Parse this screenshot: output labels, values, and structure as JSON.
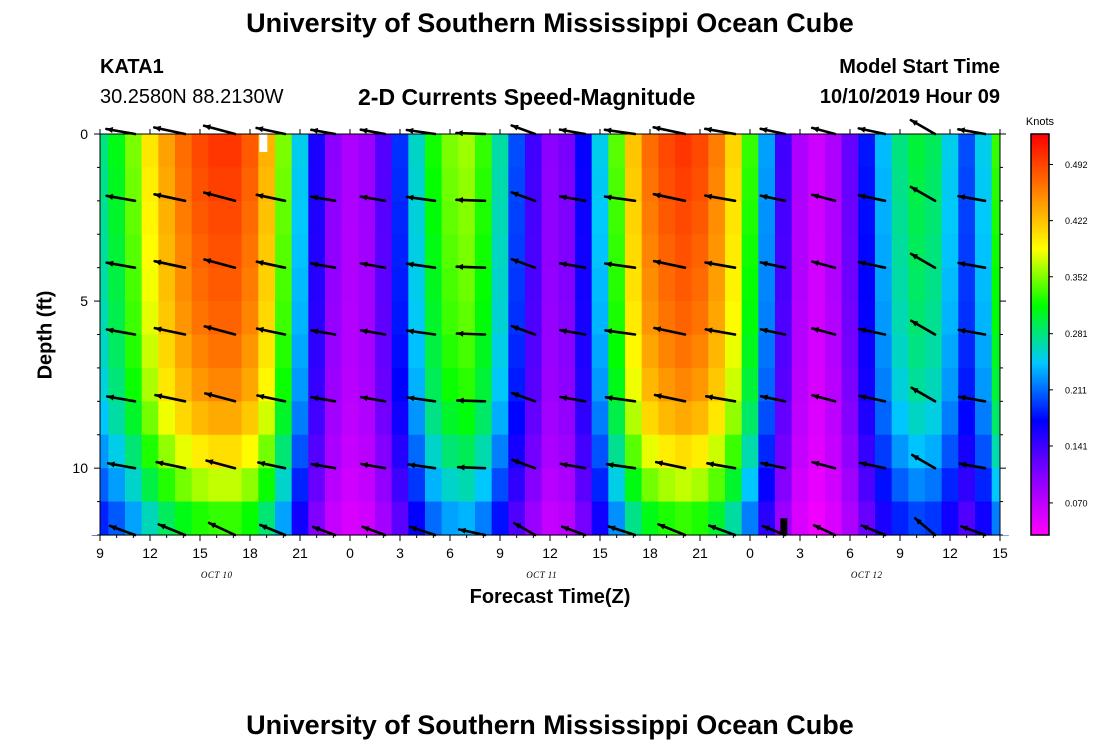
{
  "titles": {
    "top": "University of Southern Mississippi Ocean Cube",
    "bottom": "University of Southern Mississippi Ocean Cube"
  },
  "station": {
    "id": "KATA1",
    "coords": "30.2580N 88.2130W"
  },
  "plot_title": "2-D Currents Speed-Magnitude",
  "model": {
    "label": "Model Start Time",
    "time": "10/10/2019 Hour 09"
  },
  "chart_data": {
    "type": "heatmap",
    "title": "2-D Currents Speed-Magnitude",
    "xlabel": "Forecast Time(Z)",
    "ylabel": "Depth (ft)",
    "x_range_hours": [
      0,
      54
    ],
    "y_range_ft": [
      0,
      12
    ],
    "x_tick_labels": [
      "9",
      "12",
      "15",
      "18",
      "21",
      "0",
      "3",
      "6",
      "9",
      "12",
      "15",
      "18",
      "21",
      "0",
      "3",
      "6",
      "9",
      "12",
      "15"
    ],
    "y_tick_labels": [
      "0",
      "5",
      "10"
    ],
    "y_tick_values": [
      0,
      5,
      10
    ],
    "date_labels": [
      {
        "label": "OCT 10",
        "hour": 7
      },
      {
        "label": "OCT 11",
        "hour": 26.5
      },
      {
        "label": "OCT 12",
        "hour": 46
      }
    ],
    "colorbar": {
      "unit": "Knots",
      "range": [
        0.03,
        0.53
      ],
      "tick_labels": [
        "0.492",
        "0.422",
        "0.352",
        "0.281",
        "0.211",
        "0.141",
        "0.070"
      ],
      "tick_values": [
        0.492,
        0.422,
        0.352,
        0.281,
        0.211,
        0.141,
        0.07
      ],
      "colors": [
        "#ff00ff",
        "#8a00ff",
        "#0000ff",
        "#00c8ff",
        "#00ff00",
        "#ffff00",
        "#ff8000",
        "#ff0000"
      ]
    },
    "surface_speed_by_hour": [
      0.28,
      0.31,
      0.35,
      0.4,
      0.44,
      0.47,
      0.49,
      0.5,
      0.5,
      0.48,
      0.43,
      0.35,
      0.25,
      0.16,
      0.1,
      0.08,
      0.09,
      0.13,
      0.19,
      0.26,
      0.32,
      0.35,
      0.36,
      0.33,
      0.27,
      0.2,
      0.14,
      0.1,
      0.11,
      0.17,
      0.25,
      0.34,
      0.42,
      0.47,
      0.49,
      0.5,
      0.49,
      0.46,
      0.41,
      0.33,
      0.23,
      0.14,
      0.08,
      0.06,
      0.08,
      0.12,
      0.18,
      0.24,
      0.28,
      0.3,
      0.29,
      0.25,
      0.2,
      0.25,
      0.33
    ],
    "depth_factor": [
      1.0,
      0.99,
      0.98,
      0.97,
      0.96,
      0.95,
      0.93,
      0.91,
      0.87,
      0.81,
      0.74,
      0.66
    ],
    "vector_columns_hours": [
      1.5,
      4.5,
      7.5,
      10.5,
      13.5,
      16.5,
      19.5,
      22.5,
      25.5,
      28.5,
      31.5,
      34.5,
      37.5,
      40.5,
      43.5,
      46.5,
      49.5,
      52.5
    ],
    "vector_rows_ft": [
      0,
      2,
      4,
      6,
      8,
      10,
      12
    ],
    "vector_direction_deg": [
      170,
      168,
      165,
      168,
      170,
      170,
      172,
      178,
      160,
      170,
      172,
      168,
      170,
      168,
      165,
      168,
      150,
      170
    ],
    "black_marker": {
      "hour": 41,
      "depth_ft_from": 11.5,
      "depth_ft_to": 12
    }
  }
}
